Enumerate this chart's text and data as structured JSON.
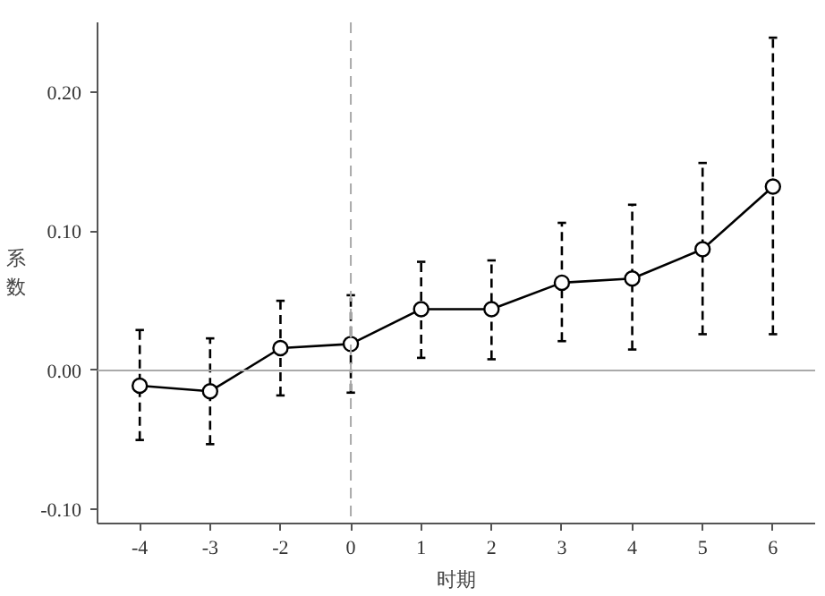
{
  "chart_data": {
    "type": "line",
    "xlabel": "时期",
    "ylabel": "系数",
    "categories": [
      "-4",
      "-3",
      "-2",
      "0",
      "1",
      "2",
      "3",
      "4",
      "5",
      "6"
    ],
    "series": [
      {
        "color": "#000000",
        "values": [
          -0.011,
          -0.015,
          0.016,
          0.019,
          0.044,
          0.044,
          0.063,
          0.066,
          0.087,
          0.132
        ],
        "errors": [
          [
            -0.05,
            0.029
          ],
          [
            -0.053,
            0.023
          ],
          [
            -0.018,
            0.05
          ],
          [
            -0.016,
            0.054
          ],
          [
            0.009,
            0.078
          ],
          [
            0.008,
            0.079
          ],
          [
            0.021,
            0.106
          ],
          [
            0.015,
            0.119
          ],
          [
            0.026,
            0.149
          ],
          [
            0.026,
            0.239
          ]
        ]
      }
    ],
    "ylim": [
      -0.11,
      0.25
    ],
    "yticks": [
      {
        "value": -0.1,
        "label": "-0.10"
      },
      {
        "value": 0,
        "label": "0.00"
      },
      {
        "value": 0.1,
        "label": "0.10"
      },
      {
        "value": 0.2,
        "label": "0.20"
      }
    ],
    "ref_lines": [
      {
        "axis": "y",
        "value": 0,
        "label": null,
        "color": "#aaaaaa",
        "line_style": "solid"
      },
      {
        "axis": "x",
        "value": "0",
        "label": null,
        "color": "#aaaaaa",
        "line_style": "dashed"
      }
    ],
    "marker": "circle",
    "line_style": "solid",
    "grid": false
  }
}
